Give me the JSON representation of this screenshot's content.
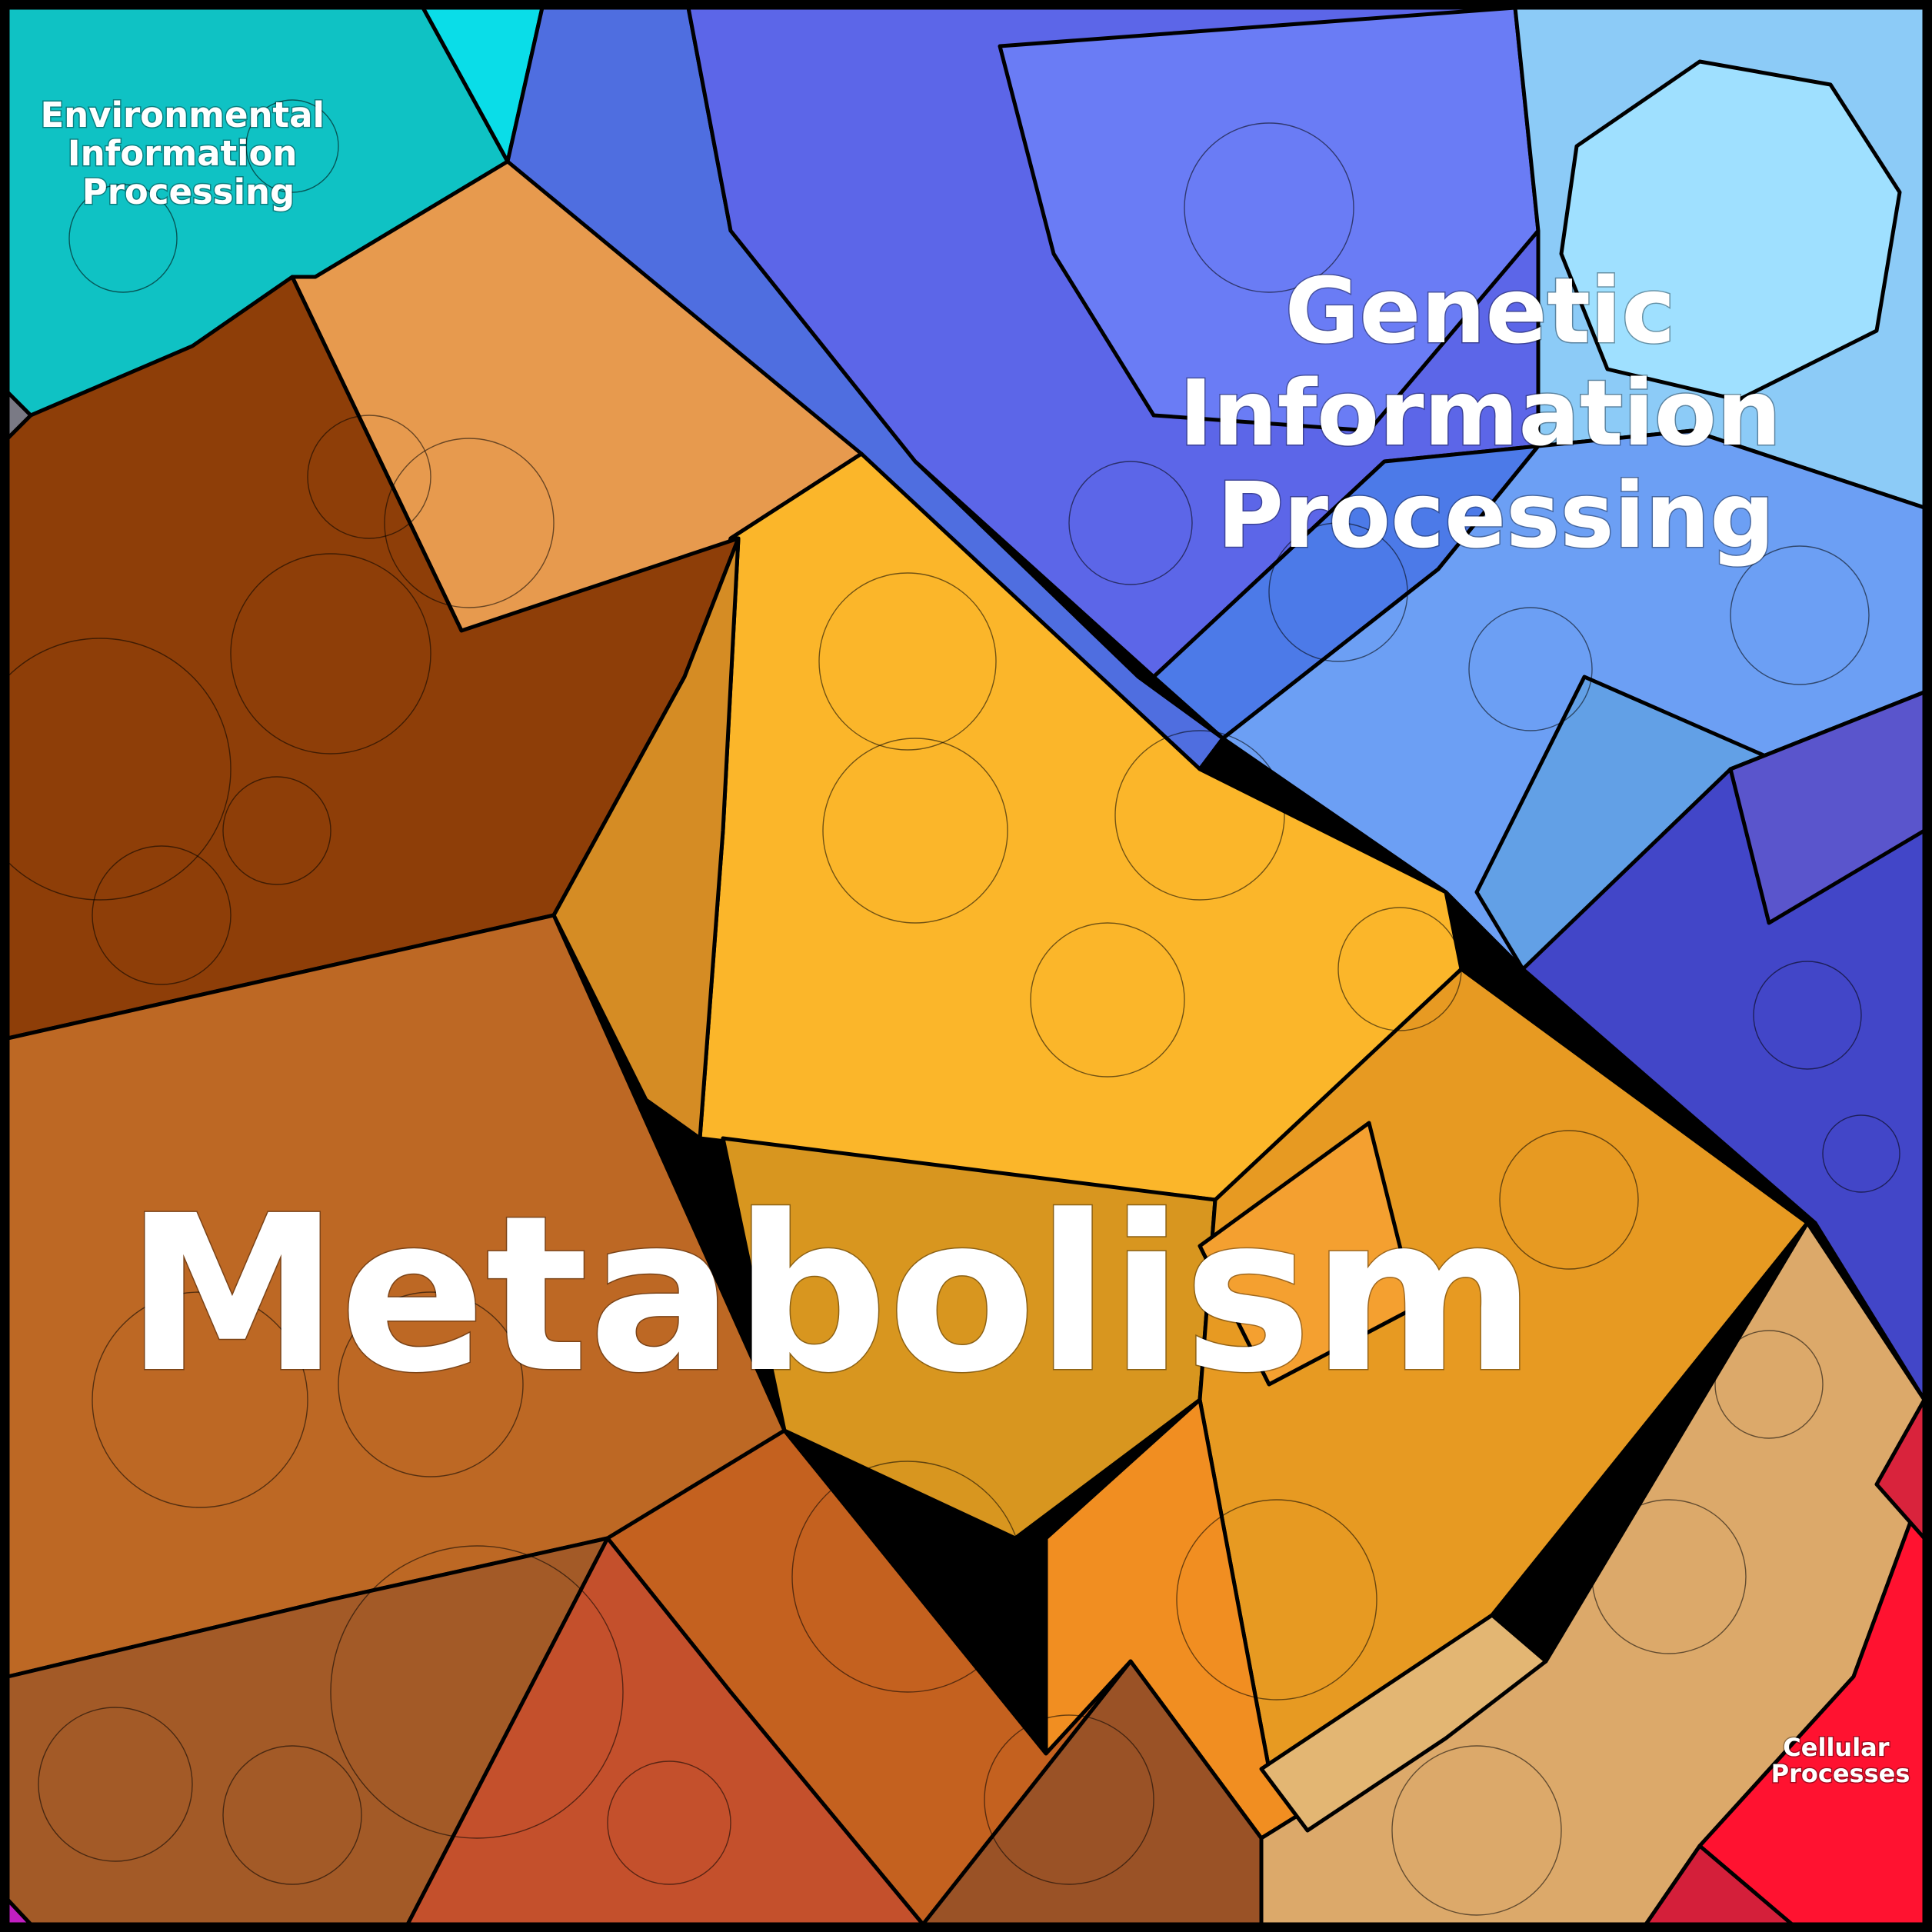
{
  "treemap": {
    "type": "voronoi-treemap",
    "categories": [
      {
        "id": "metabolism",
        "label": "Metabolism",
        "color": "#c8702a"
      },
      {
        "id": "genetic",
        "label": "Genetic Information Processing",
        "label_lines": [
          "Genetic",
          "Information",
          "Processing"
        ],
        "color": "#5a78ea"
      },
      {
        "id": "environmental",
        "label": "Environmental Information Processing",
        "label_lines": [
          "Environmental",
          "Information",
          "Processing"
        ],
        "color": "#10c4c8"
      },
      {
        "id": "cellular",
        "label": "Cellular Processes",
        "label_lines": [
          "Cellular",
          "Processes"
        ],
        "color": "#ff1430"
      }
    ]
  }
}
